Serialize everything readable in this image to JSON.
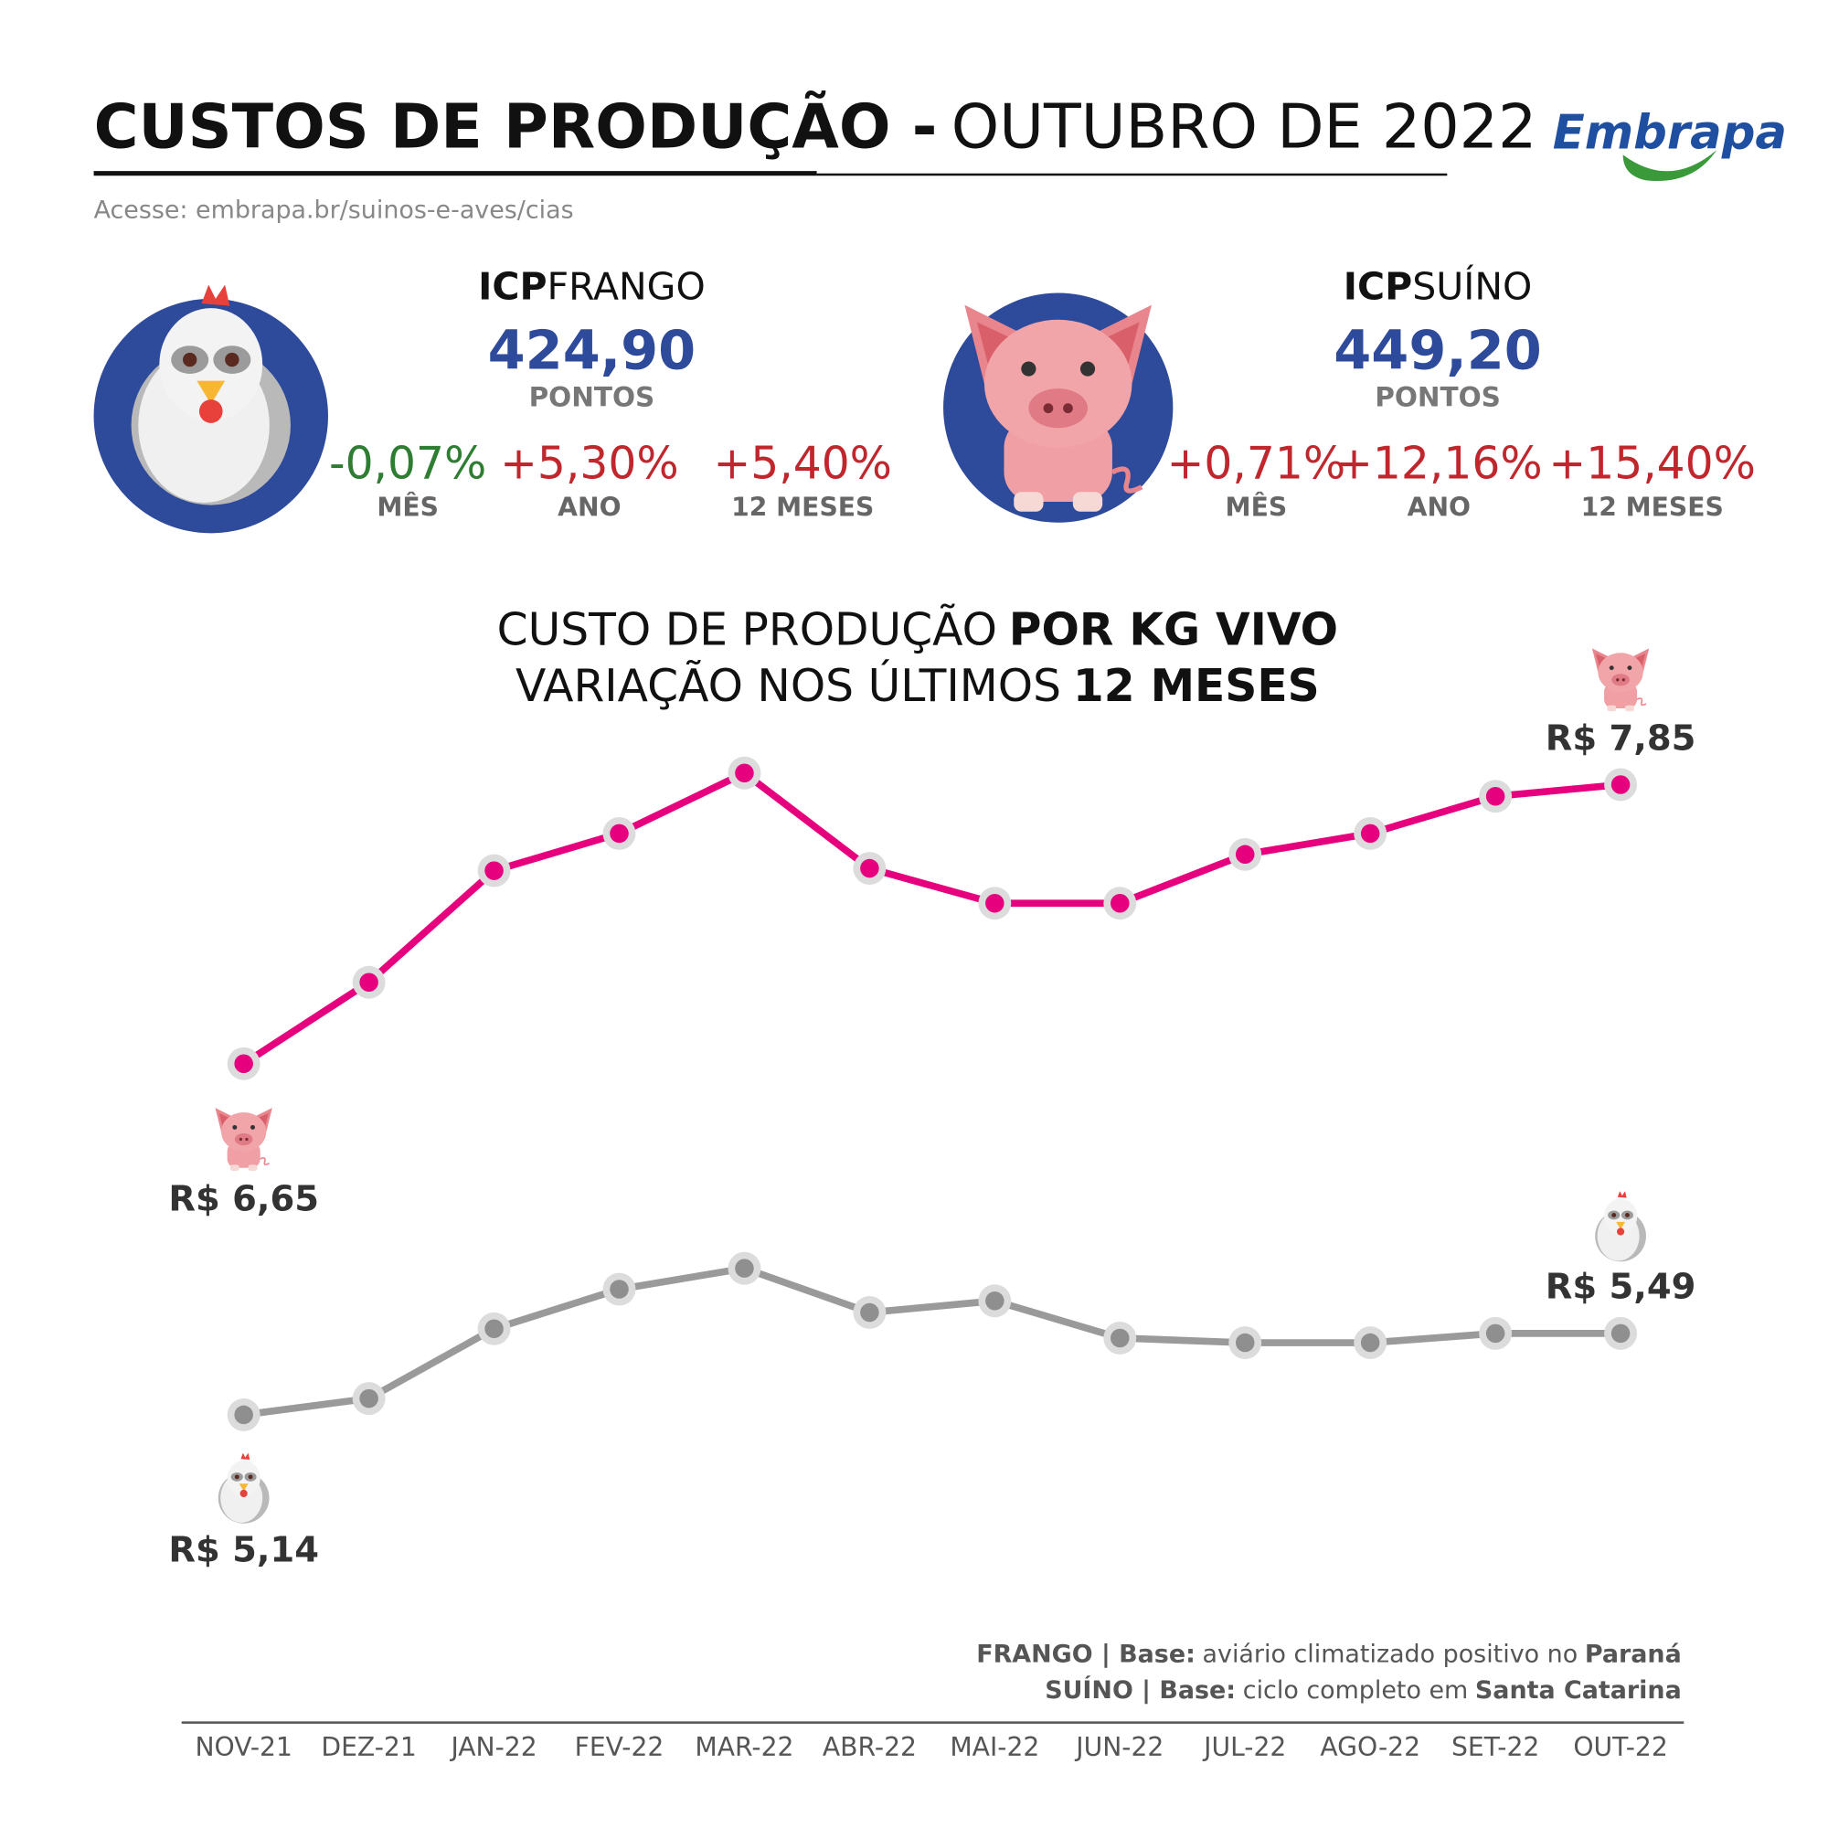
{
  "header": {
    "title_bold": "CUSTOS DE PRODUÇÃO -",
    "title_light": "OUTUBRO DE 2022",
    "link": "Acesse: embrapa.br/suinos-e-aves/cias",
    "logo": "Embrapa"
  },
  "indices": [
    {
      "prefix": "ICP",
      "name": "FRANGO",
      "value": "424,90",
      "unit": "PONTOS",
      "changes": [
        {
          "value": "-0,07%",
          "label": "MÊS",
          "color": "#2e7d32"
        },
        {
          "value": "+5,30%",
          "label": "ANO",
          "color": "#c0272d"
        },
        {
          "value": "+5,40%",
          "label": "12 MESES",
          "color": "#c0272d"
        }
      ]
    },
    {
      "prefix": "ICP",
      "name": "SUÍNO",
      "value": "449,20",
      "unit": "PONTOS",
      "changes": [
        {
          "value": "+0,71%",
          "label": "MÊS",
          "color": "#c0272d"
        },
        {
          "value": "+12,16%",
          "label": "ANO",
          "color": "#c0272d"
        },
        {
          "value": "+15,40%",
          "label": "12 MESES",
          "color": "#c0272d"
        }
      ]
    }
  ],
  "chart_data": {
    "type": "line",
    "title": [
      "CUSTO DE PRODUÇÃO",
      "POR KG VIVO"
    ],
    "subtitle": [
      "VARIAÇÃO NOS ÚLTIMOS",
      "12 MESES"
    ],
    "categories": [
      "NOV-21",
      "DEZ-21",
      "JAN-22",
      "FEV-22",
      "MAR-22",
      "ABR-22",
      "MAI-22",
      "JUN-22",
      "JUL-22",
      "AGO-22",
      "SET-22",
      "OUT-22"
    ],
    "ylim": [
      4.9,
      8.1
    ],
    "series": [
      {
        "color": "#e6007e",
        "values": [
          6.65,
          7.0,
          7.48,
          7.64,
          7.9,
          7.49,
          7.34,
          7.34,
          7.55,
          7.64,
          7.8,
          7.85
        ],
        "value_labels": [
          "R$ 6,65",
          null,
          null,
          null,
          null,
          null,
          null,
          null,
          null,
          null,
          null,
          "R$ 7,85"
        ]
      },
      {
        "color": "#9a9a9a",
        "values": [
          5.14,
          5.21,
          5.51,
          5.68,
          5.77,
          5.58,
          5.63,
          5.47,
          5.45,
          5.45,
          5.49,
          5.49
        ],
        "value_labels": [
          "R$ 5,14",
          null,
          null,
          null,
          null,
          null,
          null,
          null,
          null,
          null,
          null,
          "R$ 5,49"
        ]
      }
    ],
    "notes": [
      [
        "FRANGO | Base:",
        "aviário climatizado positivo no",
        "Paraná"
      ],
      [
        "SUÍNO | Base:",
        "ciclo completo em",
        "Santa Catarina"
      ]
    ]
  }
}
